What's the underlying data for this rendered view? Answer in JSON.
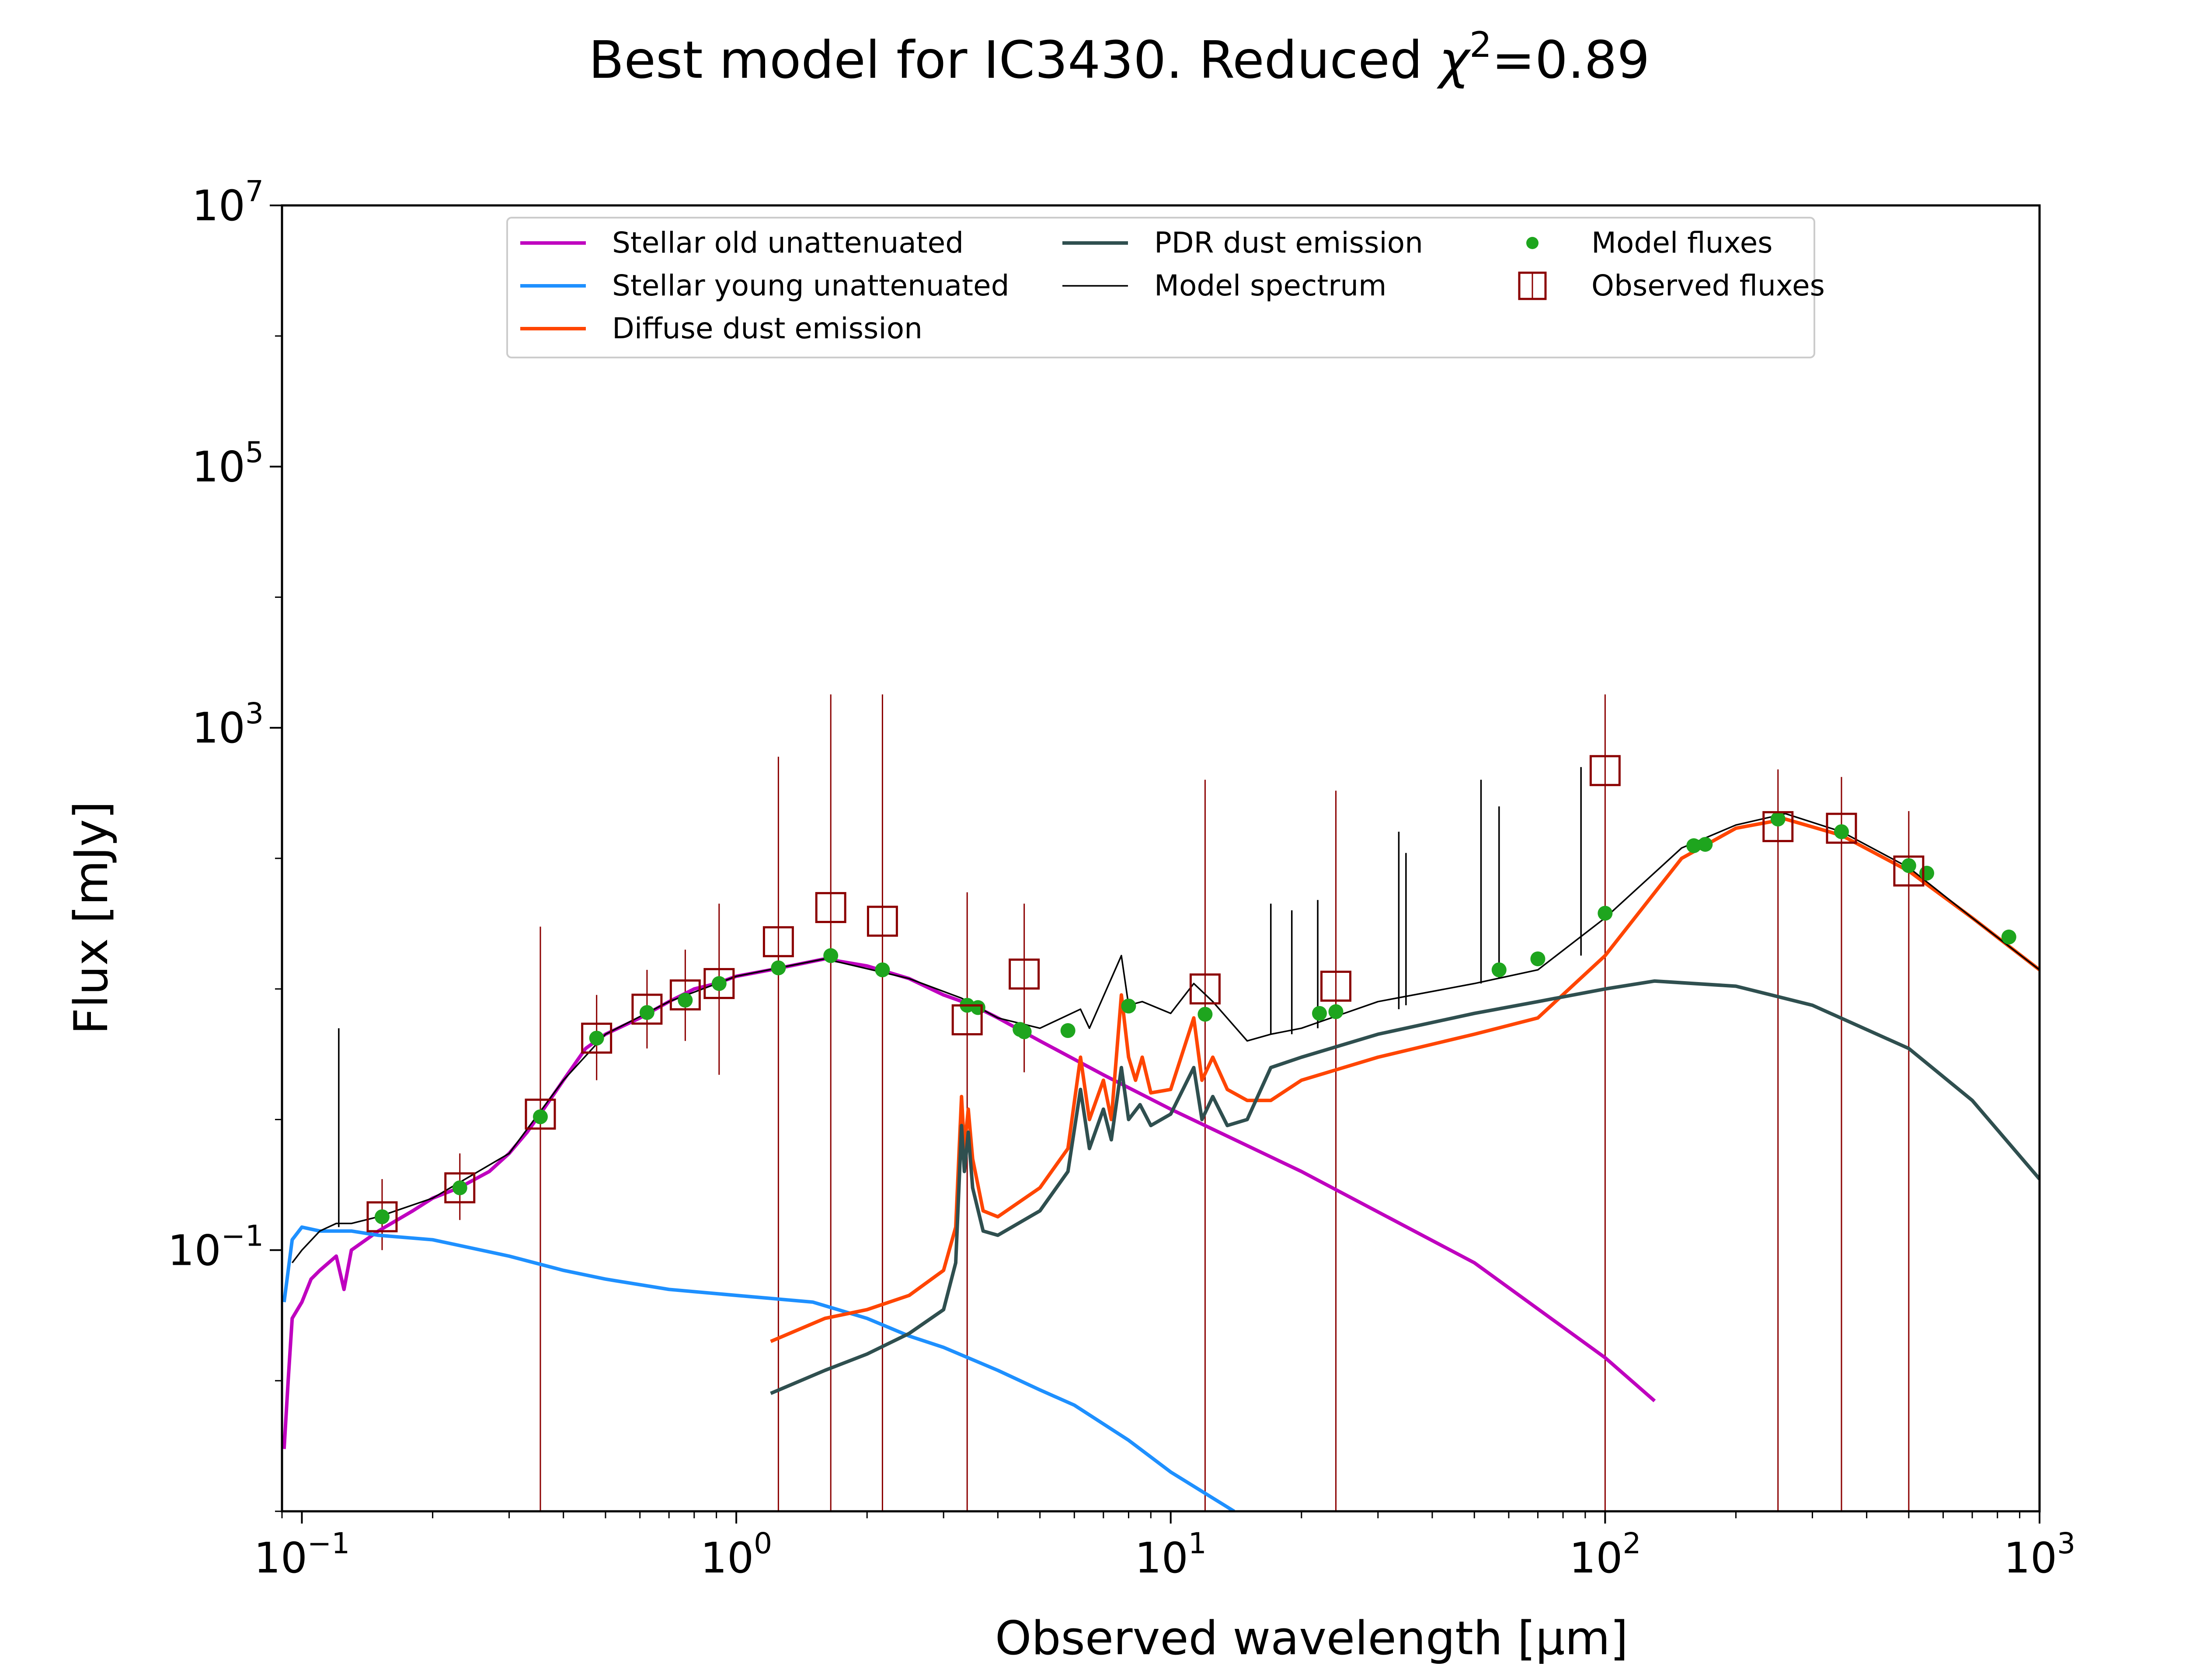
{
  "chart_data": {
    "type": "line",
    "title": "Best model for IC3430. Reduced χ²=0.89",
    "title_parts": {
      "main": "Best model for IC3430. Reduced ",
      "symbol": "χ",
      "exponent": "2",
      "value": "=0.89"
    },
    "xlabel": "Observed wavelength [μm]",
    "ylabel": "Flux [mJy]",
    "xscale": "log",
    "yscale": "log",
    "xlim": [
      0.09,
      1000
    ],
    "ylim": [
      0.001,
      10000000
    ],
    "xticks": [
      {
        "value": 0.1,
        "base": "10",
        "exp": "−1"
      },
      {
        "value": 1,
        "base": "10",
        "exp": "0"
      },
      {
        "value": 10,
        "base": "10",
        "exp": "1"
      },
      {
        "value": 100,
        "base": "10",
        "exp": "2"
      },
      {
        "value": 1000,
        "base": "10",
        "exp": "3"
      }
    ],
    "yticks": [
      {
        "value": 0.1,
        "base": "10",
        "exp": "−1"
      },
      {
        "value": 1000,
        "base": "10",
        "exp": "3"
      },
      {
        "value": 100000,
        "base": "10",
        "exp": "5"
      },
      {
        "value": 10000000,
        "base": "10",
        "exp": "7"
      }
    ],
    "grid": false,
    "legend_position": "top-center",
    "series": [
      {
        "name": "Stellar old unattenuated",
        "color": "#bf00bf",
        "kind": "line",
        "points": [
          [
            0.091,
            0.003
          ],
          [
            0.093,
            0.01
          ],
          [
            0.095,
            0.03
          ],
          [
            0.1,
            0.04
          ],
          [
            0.105,
            0.06
          ],
          [
            0.11,
            0.07
          ],
          [
            0.12,
            0.09
          ],
          [
            0.125,
            0.05
          ],
          [
            0.13,
            0.1
          ],
          [
            0.15,
            0.14
          ],
          [
            0.18,
            0.2
          ],
          [
            0.2,
            0.25
          ],
          [
            0.23,
            0.3
          ],
          [
            0.27,
            0.4
          ],
          [
            0.3,
            0.55
          ],
          [
            0.33,
            0.8
          ],
          [
            0.36,
            1.2
          ],
          [
            0.4,
            2.0
          ],
          [
            0.45,
            3.5
          ],
          [
            0.5,
            4.5
          ],
          [
            0.6,
            6.0
          ],
          [
            0.7,
            8.0
          ],
          [
            0.8,
            10
          ],
          [
            0.9,
            11
          ],
          [
            1.0,
            12.5
          ],
          [
            1.2,
            14
          ],
          [
            1.6,
            17
          ],
          [
            2.0,
            15
          ],
          [
            2.5,
            12
          ],
          [
            3.0,
            9.0
          ],
          [
            3.5,
            7.5
          ],
          [
            4.0,
            6.0
          ],
          [
            5.0,
            4.0
          ],
          [
            7.0,
            2.2
          ],
          [
            10,
            1.2
          ],
          [
            20,
            0.4
          ],
          [
            50,
            0.08
          ],
          [
            100,
            0.015
          ],
          [
            130,
            0.007
          ]
        ]
      },
      {
        "name": "Stellar young unattenuated",
        "color": "#1e90ff",
        "kind": "line",
        "points": [
          [
            0.091,
            0.04
          ],
          [
            0.095,
            0.12
          ],
          [
            0.1,
            0.15
          ],
          [
            0.11,
            0.14
          ],
          [
            0.13,
            0.14
          ],
          [
            0.15,
            0.13
          ],
          [
            0.2,
            0.12
          ],
          [
            0.3,
            0.09
          ],
          [
            0.4,
            0.07
          ],
          [
            0.5,
            0.06
          ],
          [
            0.7,
            0.05
          ],
          [
            1.0,
            0.045
          ],
          [
            1.5,
            0.04
          ],
          [
            2.0,
            0.03
          ],
          [
            2.5,
            0.022
          ],
          [
            3.0,
            0.018
          ],
          [
            4.0,
            0.012
          ],
          [
            5.0,
            0.0085
          ],
          [
            6.0,
            0.0065
          ],
          [
            8.0,
            0.0035
          ],
          [
            10,
            0.002
          ],
          [
            14,
            0.001
          ]
        ]
      },
      {
        "name": "Diffuse dust emission",
        "color": "#ff4500",
        "kind": "line",
        "points": [
          [
            1.2,
            0.02
          ],
          [
            1.6,
            0.03
          ],
          [
            2.0,
            0.035
          ],
          [
            2.5,
            0.045
          ],
          [
            3.0,
            0.07
          ],
          [
            3.2,
            0.15
          ],
          [
            3.3,
            1.5
          ],
          [
            3.35,
            0.6
          ],
          [
            3.42,
            1.2
          ],
          [
            3.5,
            0.5
          ],
          [
            3.7,
            0.2
          ],
          [
            4.0,
            0.18
          ],
          [
            5.0,
            0.3
          ],
          [
            5.8,
            0.6
          ],
          [
            6.2,
            3.0
          ],
          [
            6.5,
            1.0
          ],
          [
            7.0,
            2.0
          ],
          [
            7.3,
            1.0
          ],
          [
            7.7,
            9.0
          ],
          [
            8.0,
            3.0
          ],
          [
            8.3,
            2.0
          ],
          [
            8.6,
            3.0
          ],
          [
            9.0,
            1.6
          ],
          [
            10,
            1.7
          ],
          [
            11.3,
            6.0
          ],
          [
            11.8,
            2.0
          ],
          [
            12.5,
            3.0
          ],
          [
            13.5,
            1.7
          ],
          [
            15,
            1.4
          ],
          [
            17,
            1.4
          ],
          [
            20,
            2.0
          ],
          [
            30,
            3.0
          ],
          [
            50,
            4.5
          ],
          [
            70,
            6.0
          ],
          [
            100,
            18
          ],
          [
            150,
            100
          ],
          [
            200,
            170
          ],
          [
            260,
            200
          ],
          [
            350,
            150
          ],
          [
            500,
            80
          ],
          [
            700,
            35
          ],
          [
            1000,
            14
          ]
        ]
      },
      {
        "name": "PDR dust emission",
        "color": "#2f4f4f",
        "kind": "line",
        "points": [
          [
            1.2,
            0.008
          ],
          [
            1.6,
            0.012
          ],
          [
            2.0,
            0.016
          ],
          [
            2.5,
            0.023
          ],
          [
            3.0,
            0.035
          ],
          [
            3.2,
            0.08
          ],
          [
            3.3,
            0.9
          ],
          [
            3.35,
            0.4
          ],
          [
            3.42,
            0.8
          ],
          [
            3.5,
            0.3
          ],
          [
            3.7,
            0.14
          ],
          [
            4.0,
            0.13
          ],
          [
            5.0,
            0.2
          ],
          [
            5.8,
            0.4
          ],
          [
            6.2,
            1.7
          ],
          [
            6.5,
            0.6
          ],
          [
            7.0,
            1.2
          ],
          [
            7.3,
            0.7
          ],
          [
            7.7,
            2.5
          ],
          [
            8.0,
            1.0
          ],
          [
            8.5,
            1.3
          ],
          [
            9.0,
            0.9
          ],
          [
            10,
            1.1
          ],
          [
            11.3,
            2.5
          ],
          [
            11.8,
            1.0
          ],
          [
            12.5,
            1.5
          ],
          [
            13.5,
            0.9
          ],
          [
            15,
            1.0
          ],
          [
            17,
            2.5
          ],
          [
            20,
            3.0
          ],
          [
            30,
            4.5
          ],
          [
            50,
            6.5
          ],
          [
            70,
            8.0
          ],
          [
            100,
            10
          ],
          [
            130,
            11.5
          ],
          [
            200,
            10.5
          ],
          [
            300,
            7.5
          ],
          [
            500,
            3.5
          ],
          [
            700,
            1.4
          ],
          [
            1000,
            0.35
          ]
        ]
      },
      {
        "name": "Model spectrum",
        "color": "#000000",
        "kind": "line",
        "points": [
          [
            0.095,
            0.08
          ],
          [
            0.1,
            0.1
          ],
          [
            0.11,
            0.14
          ],
          [
            0.12,
            0.16
          ],
          [
            0.13,
            0.16
          ],
          [
            0.15,
            0.18
          ],
          [
            0.2,
            0.25
          ],
          [
            0.3,
            0.55
          ],
          [
            0.4,
            2.0
          ],
          [
            0.5,
            4.5
          ],
          [
            0.7,
            8.0
          ],
          [
            1.0,
            12.5
          ],
          [
            1.6,
            17
          ],
          [
            2.5,
            12
          ],
          [
            3.3,
            8.5
          ],
          [
            4.0,
            6.0
          ],
          [
            5.0,
            5.0
          ],
          [
            6.2,
            7.0
          ],
          [
            6.5,
            5.0
          ],
          [
            7.7,
            18
          ],
          [
            8.0,
            7.5
          ],
          [
            8.6,
            8.0
          ],
          [
            10,
            6.5
          ],
          [
            11.3,
            11
          ],
          [
            12.5,
            8.0
          ],
          [
            15,
            4.0
          ],
          [
            17,
            4.5
          ],
          [
            20,
            5.0
          ],
          [
            30,
            8.0
          ],
          [
            50,
            11
          ],
          [
            70,
            14
          ],
          [
            100,
            35
          ],
          [
            150,
            120
          ],
          [
            200,
            180
          ],
          [
            260,
            220
          ],
          [
            350,
            160
          ],
          [
            500,
            85
          ],
          [
            700,
            35
          ],
          [
            1000,
            14
          ]
        ]
      },
      {
        "name": "Model fluxes",
        "color": "#1ea51e",
        "kind": "points",
        "points": [
          [
            0.153,
            0.18
          ],
          [
            0.231,
            0.3
          ],
          [
            0.354,
            1.05
          ],
          [
            0.477,
            4.2
          ],
          [
            0.623,
            6.6
          ],
          [
            0.763,
            8.2
          ],
          [
            0.913,
            11
          ],
          [
            1.25,
            14.5
          ],
          [
            1.65,
            18
          ],
          [
            2.17,
            14
          ],
          [
            3.4,
            7.5
          ],
          [
            3.6,
            7.2
          ],
          [
            4.5,
            4.9
          ],
          [
            4.6,
            4.7
          ],
          [
            5.8,
            4.8
          ],
          [
            8.0,
            7.4
          ],
          [
            12,
            6.4
          ],
          [
            22,
            6.5
          ],
          [
            24,
            6.7
          ],
          [
            57,
            14
          ],
          [
            70,
            17
          ],
          [
            100,
            38
          ],
          [
            160,
            125
          ],
          [
            170,
            128
          ],
          [
            250,
            200
          ],
          [
            350,
            160
          ],
          [
            500,
            88
          ],
          [
            550,
            77
          ],
          [
            850,
            25
          ]
        ]
      },
      {
        "name": "Observed fluxes",
        "color": "#8b0000",
        "kind": "errorbars",
        "points": [
          [
            0.153,
            0.18,
            0.1,
            0.35
          ],
          [
            0.231,
            0.3,
            0.17,
            0.55
          ],
          [
            0.354,
            1.1,
            0.001,
            30
          ],
          [
            0.477,
            4.2,
            2.0,
            9.0
          ],
          [
            0.623,
            7.0,
            3.5,
            14
          ],
          [
            0.763,
            9.0,
            4.0,
            20
          ],
          [
            0.913,
            11,
            2.2,
            45
          ],
          [
            1.25,
            23,
            0.001,
            600
          ],
          [
            1.65,
            42,
            0.001,
            1800
          ],
          [
            2.17,
            33,
            0.001,
            1800
          ],
          [
            3.4,
            5.8,
            0.001,
            55
          ],
          [
            4.6,
            13,
            2.3,
            45
          ],
          [
            12,
            10,
            0.001,
            400
          ],
          [
            24,
            10.5,
            0.001,
            330
          ],
          [
            100,
            470,
            0.001,
            1800
          ],
          [
            250,
            175,
            0.001,
            480
          ],
          [
            350,
            170,
            0.001,
            420
          ],
          [
            500,
            80,
            0.001,
            230
          ]
        ]
      },
      {
        "name": "",
        "color": "#000000",
        "kind": "emission_lines",
        "points": [
          [
            0.1216,
            0.15,
            5.0
          ],
          [
            17,
            4.5,
            45
          ],
          [
            19,
            4.5,
            40
          ],
          [
            21.8,
            5.0,
            48
          ],
          [
            33.5,
            7.0,
            160
          ],
          [
            34.8,
            7.5,
            110
          ],
          [
            51.8,
            11,
            400
          ],
          [
            57,
            12,
            250
          ],
          [
            88,
            18,
            500
          ]
        ]
      }
    ]
  }
}
